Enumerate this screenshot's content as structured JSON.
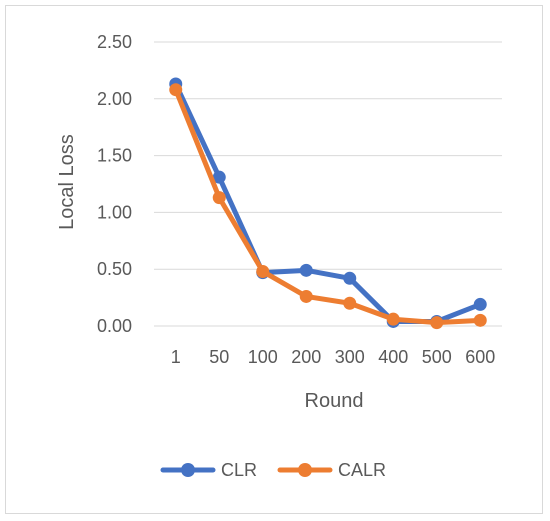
{
  "chart_data": {
    "type": "line",
    "title": "",
    "xlabel": "Round",
    "ylabel": "Local Loss",
    "categories": [
      "1",
      "50",
      "100",
      "200",
      "300",
      "400",
      "500",
      "600"
    ],
    "ylim": [
      0,
      2.5
    ],
    "yticks": [
      "0.00",
      "0.50",
      "1.00",
      "1.50",
      "2.00",
      "2.50"
    ],
    "grid": "horizontal",
    "legend": "bottom",
    "series": [
      {
        "name": "CLR",
        "color": "#4472C4",
        "values": [
          2.13,
          1.31,
          0.47,
          0.49,
          0.42,
          0.04,
          0.04,
          0.19
        ]
      },
      {
        "name": "CALR",
        "color": "#ED7D31",
        "values": [
          2.08,
          1.13,
          0.48,
          0.26,
          0.2,
          0.06,
          0.03,
          0.05
        ]
      }
    ]
  }
}
